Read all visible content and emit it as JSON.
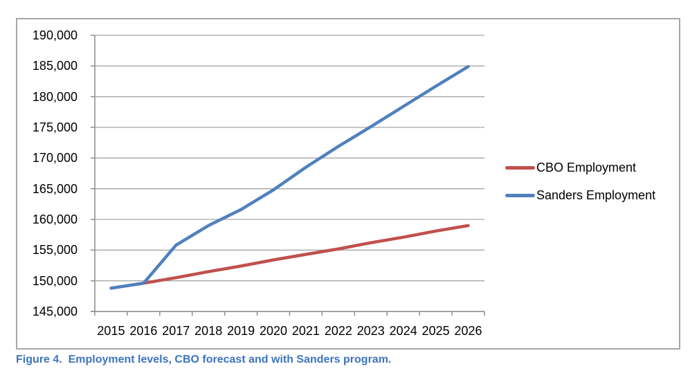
{
  "page": {
    "caption": "Figure 4.  Employment levels, CBO forecast and with Sanders program."
  },
  "chart_data": {
    "type": "line",
    "title": "",
    "xlabel": "",
    "ylabel": "",
    "x": [
      2015,
      2016,
      2017,
      2018,
      2019,
      2020,
      2021,
      2022,
      2023,
      2024,
      2025,
      2026
    ],
    "series": [
      {
        "name": "CBO Employment",
        "color": "#c0504d",
        "values": [
          148800,
          149600,
          150500,
          151500,
          152400,
          153400,
          154300,
          155200,
          156200,
          157100,
          158100,
          159000
        ]
      },
      {
        "name": "Sanders Employment",
        "color": "#4f81bd",
        "values": [
          148800,
          149600,
          155800,
          159000,
          161600,
          164800,
          168500,
          171900,
          175100,
          178400,
          181700,
          184900
        ]
      }
    ],
    "ylim": [
      145000,
      190000
    ],
    "ytick_step": 5000,
    "y_tick_labels_top_to_bottom": [
      "190,000",
      "185,000",
      "180,000",
      "175,000",
      "170,000",
      "165,000",
      "160,000",
      "155,000",
      "150,000",
      "145,000"
    ],
    "grid": true,
    "legend_position": "right-outside"
  },
  "colors": {
    "gridline": "#a6a6a6",
    "axis": "#8c8c8c",
    "chart_border": "#a6a6a6",
    "caption_text": "#3e74bc",
    "label_text": "#000000",
    "background": "#ffffff"
  }
}
